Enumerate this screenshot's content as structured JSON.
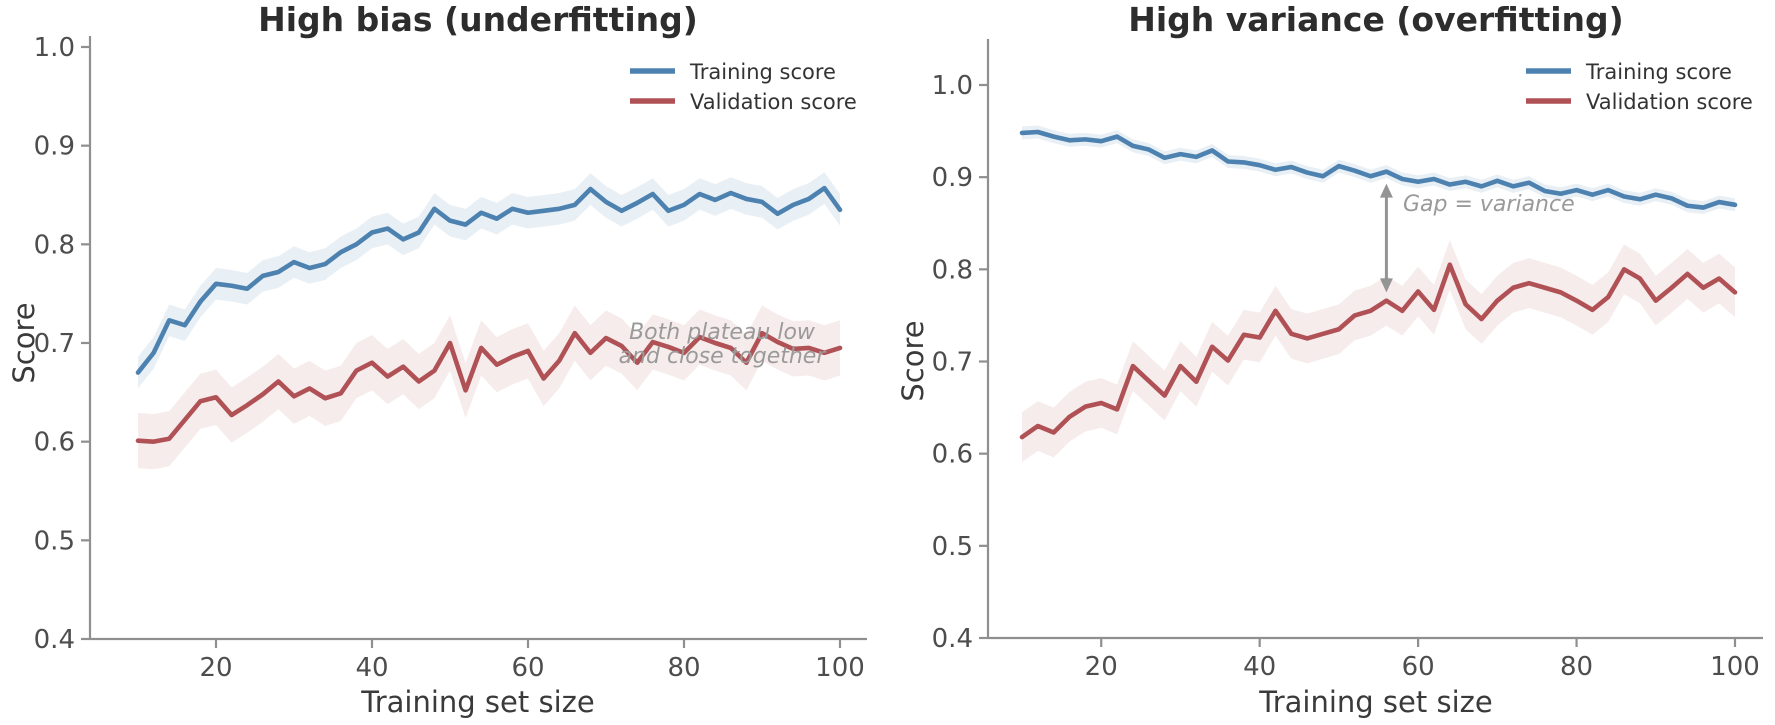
{
  "legend": {
    "training": "Training score",
    "validation": "Validation score"
  },
  "chart_data": [
    {
      "type": "line",
      "title": "High bias (underfitting)",
      "xlabel": "Training set size",
      "ylabel": "Score",
      "xlim": [
        10,
        100
      ],
      "ylim": [
        0.4,
        1.0
      ],
      "xticks": [
        20,
        40,
        60,
        80,
        100
      ],
      "yticks": [
        0.4,
        0.5,
        0.6,
        0.7,
        0.8,
        0.9,
        1.0
      ],
      "grid": false,
      "legend_position": "upper right",
      "x": [
        10,
        12,
        14,
        16,
        18,
        20,
        22,
        24,
        26,
        28,
        30,
        32,
        34,
        36,
        38,
        40,
        42,
        44,
        46,
        48,
        50,
        52,
        54,
        56,
        58,
        60,
        62,
        64,
        66,
        68,
        70,
        72,
        74,
        76,
        78,
        80,
        82,
        84,
        86,
        88,
        90,
        92,
        94,
        96,
        98,
        100
      ],
      "series": [
        {
          "name": "Training score",
          "color": "#4d82b0",
          "band_color": "rgba(77,130,176,0.13)",
          "band": 0.016,
          "values": [
            0.67,
            0.69,
            0.723,
            0.718,
            0.742,
            0.76,
            0.758,
            0.755,
            0.768,
            0.772,
            0.782,
            0.776,
            0.78,
            0.792,
            0.8,
            0.812,
            0.816,
            0.805,
            0.812,
            0.836,
            0.824,
            0.82,
            0.832,
            0.826,
            0.836,
            0.832,
            0.834,
            0.836,
            0.84,
            0.856,
            0.843,
            0.834,
            0.842,
            0.851,
            0.834,
            0.84,
            0.851,
            0.845,
            0.852,
            0.846,
            0.843,
            0.831,
            0.84,
            0.846,
            0.857,
            0.835
          ]
        },
        {
          "name": "Validation score",
          "color": "#b05156",
          "band_color": "rgba(176,81,86,0.11)",
          "band": 0.028,
          "values": [
            0.601,
            0.6,
            0.603,
            0.622,
            0.641,
            0.645,
            0.627,
            0.637,
            0.648,
            0.661,
            0.646,
            0.654,
            0.644,
            0.649,
            0.672,
            0.68,
            0.666,
            0.676,
            0.661,
            0.672,
            0.7,
            0.652,
            0.695,
            0.678,
            0.686,
            0.692,
            0.664,
            0.682,
            0.71,
            0.69,
            0.705,
            0.697,
            0.68,
            0.701,
            0.696,
            0.69,
            0.706,
            0.7,
            0.695,
            0.68,
            0.71,
            0.701,
            0.694,
            0.695,
            0.69,
            0.695
          ]
        }
      ],
      "annotation": {
        "lines": [
          "Both plateau low",
          "and close together"
        ],
        "color": "#9a9a9a"
      }
    },
    {
      "type": "line",
      "title": "High variance (overfitting)",
      "xlabel": "Training set size",
      "ylabel": "Score",
      "xlim": [
        10,
        100
      ],
      "ylim": [
        0.4,
        1.05
      ],
      "xticks": [
        20,
        40,
        60,
        80,
        100
      ],
      "yticks": [
        0.4,
        0.5,
        0.6,
        0.7,
        0.8,
        0.9,
        1.0
      ],
      "grid": false,
      "legend_position": "upper right",
      "x": [
        10,
        12,
        14,
        16,
        18,
        20,
        22,
        24,
        26,
        28,
        30,
        32,
        34,
        36,
        38,
        40,
        42,
        44,
        46,
        48,
        50,
        52,
        54,
        56,
        58,
        60,
        62,
        64,
        66,
        68,
        70,
        72,
        74,
        76,
        78,
        80,
        82,
        84,
        86,
        88,
        90,
        92,
        94,
        96,
        98,
        100
      ],
      "series": [
        {
          "name": "Training score",
          "color": "#4d82b0",
          "band_color": "rgba(77,130,176,0.13)",
          "band": 0.007,
          "values": [
            0.948,
            0.949,
            0.944,
            0.94,
            0.941,
            0.939,
            0.944,
            0.934,
            0.93,
            0.921,
            0.925,
            0.922,
            0.929,
            0.917,
            0.916,
            0.913,
            0.908,
            0.911,
            0.905,
            0.901,
            0.912,
            0.907,
            0.901,
            0.906,
            0.898,
            0.895,
            0.898,
            0.892,
            0.895,
            0.89,
            0.896,
            0.89,
            0.894,
            0.885,
            0.882,
            0.886,
            0.881,
            0.886,
            0.879,
            0.876,
            0.881,
            0.877,
            0.869,
            0.867,
            0.873,
            0.87
          ]
        },
        {
          "name": "Validation score",
          "color": "#b05156",
          "band_color": "rgba(176,81,86,0.11)",
          "band": 0.027,
          "values": [
            0.618,
            0.63,
            0.623,
            0.64,
            0.651,
            0.655,
            0.648,
            0.695,
            0.679,
            0.663,
            0.695,
            0.678,
            0.716,
            0.701,
            0.729,
            0.726,
            0.755,
            0.73,
            0.725,
            0.73,
            0.735,
            0.75,
            0.755,
            0.766,
            0.755,
            0.776,
            0.756,
            0.805,
            0.762,
            0.746,
            0.766,
            0.78,
            0.785,
            0.78,
            0.775,
            0.766,
            0.756,
            0.77,
            0.8,
            0.79,
            0.766,
            0.78,
            0.795,
            0.78,
            0.79,
            0.775
          ]
        }
      ],
      "annotation": {
        "text": "Gap = variance",
        "color": "#9a9a9a"
      },
      "gap_arrow": {
        "x": 56,
        "y_from": 0.893,
        "y_to": 0.775,
        "color": "#949494"
      }
    }
  ]
}
